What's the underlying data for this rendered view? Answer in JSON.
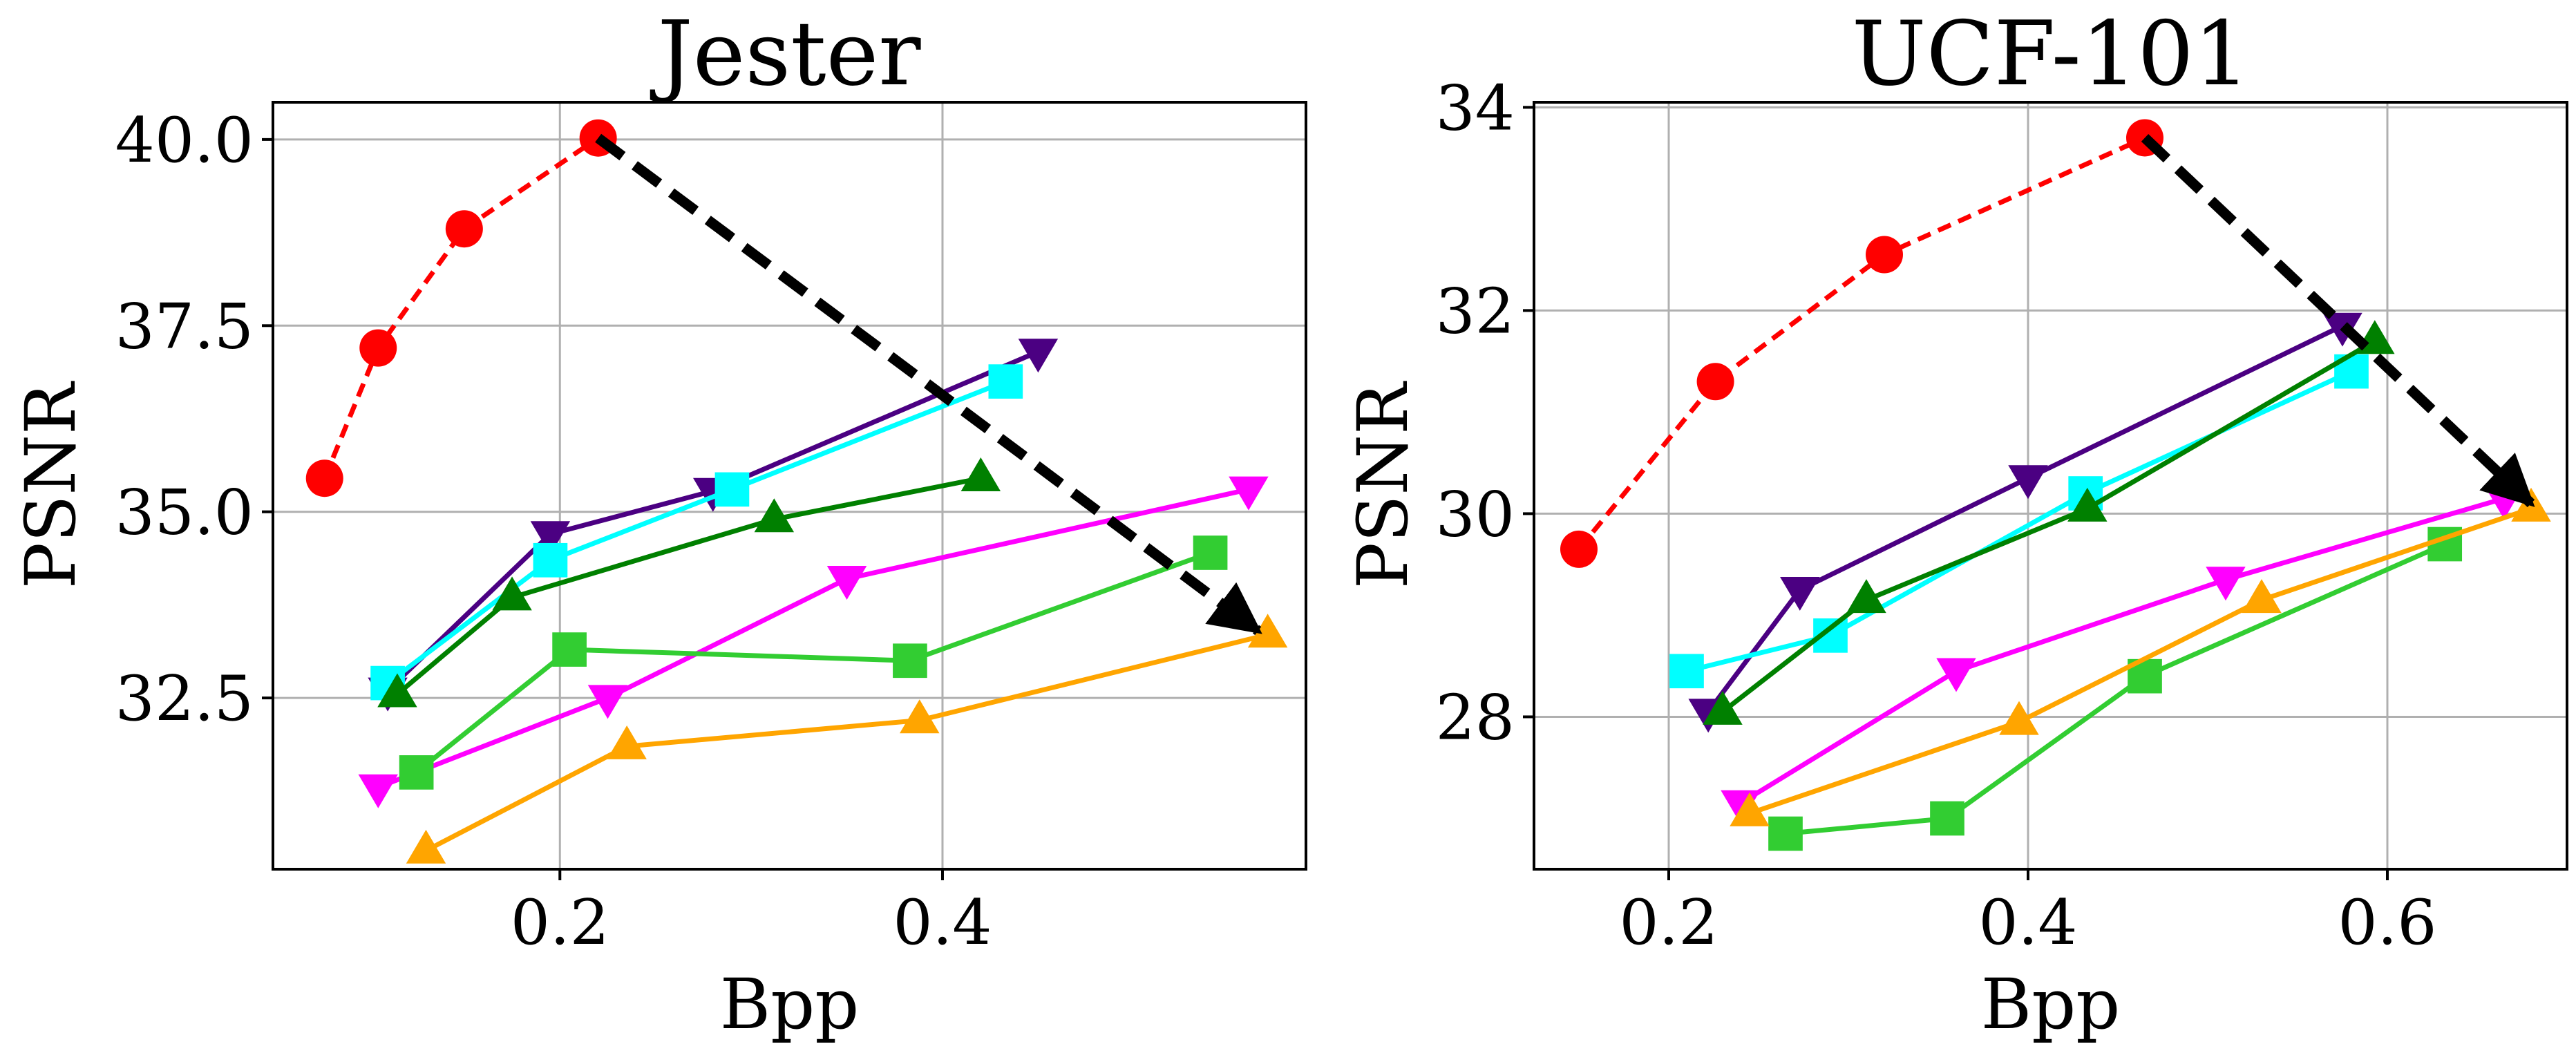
{
  "chart_data": [
    {
      "type": "line",
      "title": "Jester",
      "xlabel": "Bpp",
      "ylabel": "PSNR",
      "xlim": [
        0.05,
        0.59
      ],
      "ylim": [
        30.2,
        40.5
      ],
      "xticks": [
        0.2,
        0.4
      ],
      "xtick_labels": [
        "0.2",
        "0.4"
      ],
      "yticks": [
        32.5,
        35.0,
        37.5,
        40.0
      ],
      "ytick_labels": [
        "32.5",
        "35.0",
        "37.5",
        "40.0"
      ],
      "grid": true,
      "legend": "none",
      "series": [
        {
          "color": "#ff0000",
          "marker": "circle",
          "line": "dashed",
          "points": [
            [
              0.077,
              35.45
            ],
            [
              0.105,
              37.2
            ],
            [
              0.15,
              38.8
            ],
            [
              0.22,
              40.02
            ]
          ]
        },
        {
          "color": "#4b0082",
          "marker": "triangle-down",
          "line": "solid",
          "points": [
            [
              0.11,
              32.6
            ],
            [
              0.195,
              34.7
            ],
            [
              0.28,
              35.28
            ],
            [
              0.45,
              37.15
            ]
          ]
        },
        {
          "color": "#00ffff",
          "marker": "square",
          "line": "solid",
          "points": [
            [
              0.11,
              32.7
            ],
            [
              0.195,
              34.35
            ],
            [
              0.29,
              35.3
            ],
            [
              0.433,
              36.75
            ]
          ]
        },
        {
          "color": "#008000",
          "marker": "triangle-up",
          "line": "solid",
          "points": [
            [
              0.115,
              32.55
            ],
            [
              0.175,
              33.85
            ],
            [
              0.312,
              34.9
            ],
            [
              0.42,
              35.45
            ]
          ]
        },
        {
          "color": "#ff00ff",
          "marker": "triangle-down",
          "line": "solid",
          "points": [
            [
              0.105,
              31.3
            ],
            [
              0.225,
              32.5
            ],
            [
              0.35,
              34.1
            ],
            [
              0.56,
              35.3
            ]
          ]
        },
        {
          "color": "#32cd32",
          "marker": "square",
          "line": "solid",
          "points": [
            [
              0.125,
              31.5
            ],
            [
              0.205,
              33.15
            ],
            [
              0.383,
              33.0
            ],
            [
              0.54,
              34.45
            ]
          ]
        },
        {
          "color": "#ffa500",
          "marker": "triangle-up",
          "line": "solid",
          "points": [
            [
              0.13,
              30.45
            ],
            [
              0.235,
              31.85
            ],
            [
              0.388,
              32.2
            ],
            [
              0.57,
              33.35
            ]
          ]
        }
      ],
      "arrow": {
        "from": [
          0.22,
          40.02
        ],
        "to": [
          0.565,
          33.4
        ],
        "color": "#000000",
        "line": "dashed"
      }
    },
    {
      "type": "line",
      "title": "UCF-101",
      "xlabel": "Bpp",
      "ylabel": "PSNR",
      "xlim": [
        0.125,
        0.7
      ],
      "ylim": [
        26.5,
        34.05
      ],
      "xticks": [
        0.2,
        0.4,
        0.6
      ],
      "xtick_labels": [
        "0.2",
        "0.4",
        "0.6"
      ],
      "yticks": [
        28,
        30,
        32,
        34
      ],
      "ytick_labels": [
        "28",
        "30",
        "32",
        "34"
      ],
      "grid": true,
      "legend": "none",
      "series": [
        {
          "color": "#ff0000",
          "marker": "circle",
          "line": "dashed",
          "points": [
            [
              0.15,
              29.65
            ],
            [
              0.226,
              31.3
            ],
            [
              0.32,
              32.55
            ],
            [
              0.465,
              33.7
            ]
          ]
        },
        {
          "color": "#4b0082",
          "marker": "triangle-down",
          "line": "solid",
          "points": [
            [
              0.222,
              28.05
            ],
            [
              0.273,
              29.25
            ],
            [
              0.4,
              30.35
            ],
            [
              0.575,
              31.85
            ]
          ]
        },
        {
          "color": "#00ffff",
          "marker": "square",
          "line": "solid",
          "points": [
            [
              0.21,
              28.45
            ],
            [
              0.29,
              28.8
            ],
            [
              0.432,
              30.2
            ],
            [
              0.58,
              31.4
            ]
          ]
        },
        {
          "color": "#008000",
          "marker": "triangle-up",
          "line": "solid",
          "points": [
            [
              0.23,
              28.05
            ],
            [
              0.31,
              29.15
            ],
            [
              0.433,
              30.05
            ],
            [
              0.593,
              31.7
            ]
          ]
        },
        {
          "color": "#ff00ff",
          "marker": "triangle-down",
          "line": "solid",
          "points": [
            [
              0.24,
              27.15
            ],
            [
              0.36,
              28.45
            ],
            [
              0.51,
              29.35
            ],
            [
              0.665,
              30.15
            ]
          ]
        },
        {
          "color": "#32cd32",
          "marker": "square",
          "line": "solid",
          "points": [
            [
              0.265,
              26.85
            ],
            [
              0.355,
              27.0
            ],
            [
              0.465,
              28.4
            ],
            [
              0.632,
              29.7
            ]
          ]
        },
        {
          "color": "#ffa500",
          "marker": "triangle-up",
          "line": "solid",
          "points": [
            [
              0.245,
              27.05
            ],
            [
              0.395,
              27.95
            ],
            [
              0.53,
              29.15
            ],
            [
              0.68,
              30.05
            ]
          ]
        }
      ],
      "arrow": {
        "from": [
          0.465,
          33.7
        ],
        "to": [
          0.68,
          30.1
        ],
        "color": "#000000",
        "line": "dashed"
      }
    }
  ]
}
